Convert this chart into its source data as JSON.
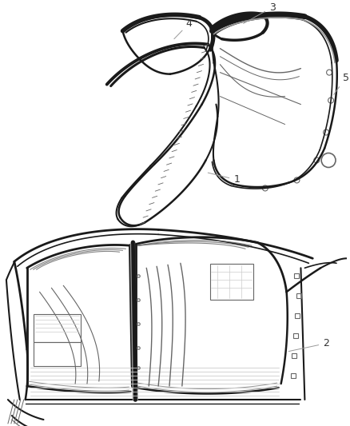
{
  "background_color": "#ffffff",
  "fig_width": 4.38,
  "fig_height": 5.33,
  "dpi": 100,
  "text_color": "#333333",
  "dark": "#1a1a1a",
  "mid": "#666666",
  "gray": "#999999",
  "light": "#cccccc"
}
